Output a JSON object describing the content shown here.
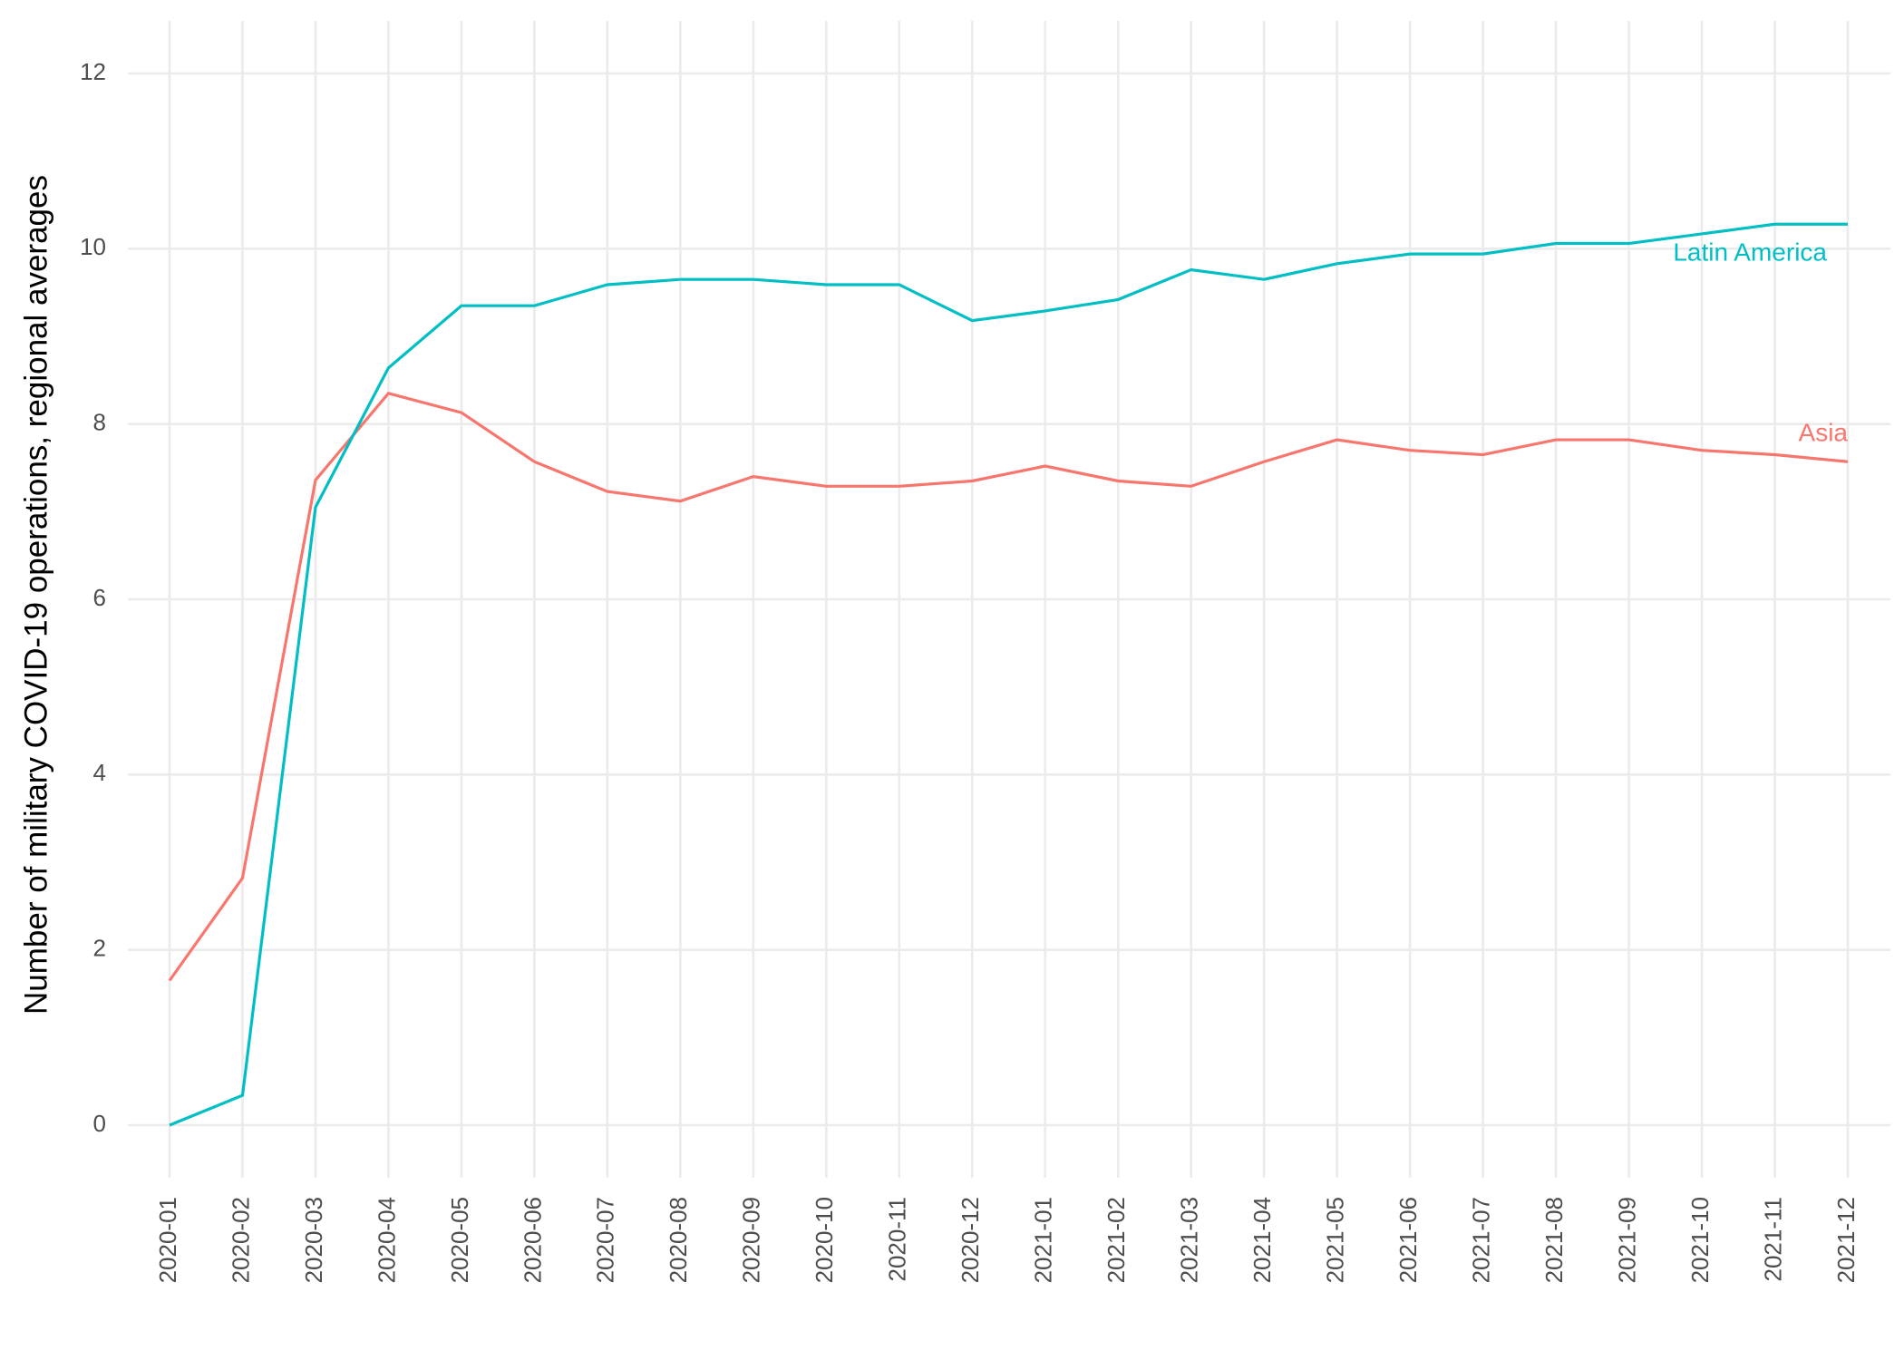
{
  "chart_data": {
    "type": "line",
    "y_label": "Number of military COVID-19 operations, regional averages",
    "categories": [
      "2020-01",
      "2020-02",
      "2020-03",
      "2020-04",
      "2020-05",
      "2020-06",
      "2020-07",
      "2020-08",
      "2020-09",
      "2020-10",
      "2020-11",
      "2020-12",
      "2021-01",
      "2021-02",
      "2021-03",
      "2021-04",
      "2021-05",
      "2021-06",
      "2021-07",
      "2021-08",
      "2021-09",
      "2021-10",
      "2021-11",
      "2021-12"
    ],
    "series": [
      {
        "name": "Asia",
        "color": "#F8766D",
        "values": [
          1.65,
          2.82,
          7.36,
          8.35,
          8.13,
          7.57,
          7.23,
          7.12,
          7.4,
          7.29,
          7.29,
          7.35,
          7.52,
          7.35,
          7.29,
          7.57,
          7.82,
          7.7,
          7.65,
          7.82,
          7.82,
          7.7,
          7.65,
          7.57
        ]
      },
      {
        "name": "Latin America",
        "color": "#00BFC4",
        "values": [
          0,
          0.34,
          7.05,
          8.64,
          9.35,
          9.35,
          9.59,
          9.65,
          9.65,
          9.59,
          9.59,
          9.18,
          9.29,
          9.42,
          9.76,
          9.65,
          9.83,
          9.94,
          9.94,
          10.06,
          10.06,
          10.17,
          10.28,
          10.28
        ]
      }
    ],
    "ylim": [
      -0.6,
      12.6
    ],
    "yticks": [
      0,
      2,
      4,
      6,
      8,
      10,
      12
    ],
    "grid": true
  }
}
